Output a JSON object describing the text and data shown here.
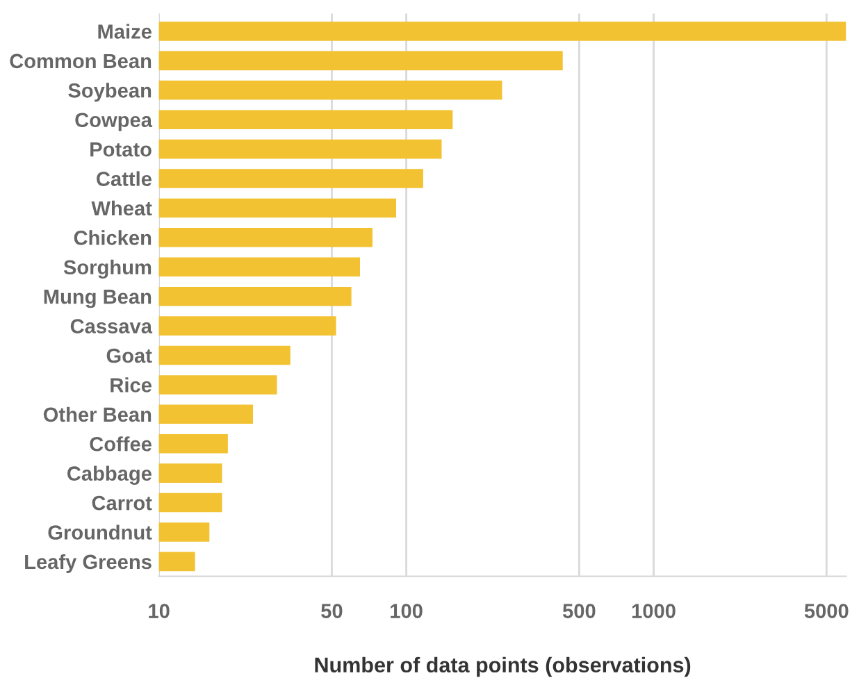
{
  "chart_data": {
    "type": "bar",
    "orientation": "horizontal",
    "log": "x",
    "xlabel": "Number of data points (observations)",
    "categories": [
      "Maize",
      "Common Bean",
      "Soybean",
      "Cowpea",
      "Potato",
      "Cattle",
      "Wheat",
      "Chicken",
      "Sorghum",
      "Mung Bean",
      "Cassava",
      "Goat",
      "Rice",
      "Other Bean",
      "Coffee",
      "Cabbage",
      "Carrot",
      "Groundnut",
      "Leafy Greens"
    ],
    "values": [
      6000,
      429,
      244,
      154,
      139,
      117,
      91,
      73,
      65,
      60,
      52,
      34,
      30,
      24,
      19,
      18,
      18,
      16,
      14
    ],
    "color": "#f2c232",
    "xlim": [
      10,
      6000
    ],
    "xticks": [
      10,
      50,
      100,
      500,
      1000,
      5000
    ],
    "grid": "x"
  }
}
